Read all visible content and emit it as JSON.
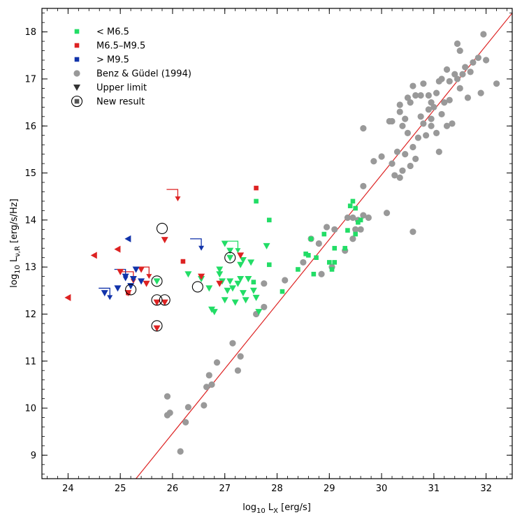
{
  "chart_data": {
    "type": "scatter",
    "xlabel": {
      "main": "log",
      "sub": "10",
      "rest": " L",
      "rest_sub": "X",
      "unit": " [erg/s]"
    },
    "ylabel": {
      "main": "log",
      "sub": "10",
      "rest": " L",
      "rest_sub": "ν,R",
      "unit": " [erg/s/Hz]"
    },
    "xlim": [
      23.5,
      32.5
    ],
    "ylim": [
      8.5,
      18.5
    ],
    "x_ticks": [
      24,
      25,
      26,
      27,
      28,
      29,
      30,
      31,
      32
    ],
    "y_ticks": [
      9,
      10,
      11,
      12,
      13,
      14,
      15,
      16,
      17,
      18
    ],
    "grid": false,
    "legend_placement": "top-left",
    "legend": [
      {
        "label": "< M6.5",
        "marker": "square",
        "color": "#22dd66"
      },
      {
        "label": "M6.5–M9.5",
        "marker": "square",
        "color": "#dd2222"
      },
      {
        "label": "> M9.5",
        "marker": "square",
        "color": "#1133aa"
      },
      {
        "label": "Benz & Güdel (1994)",
        "marker": "circle",
        "color": "#999999"
      },
      {
        "label": "Upper limit",
        "marker": "triangle-down",
        "color": "#333333"
      },
      {
        "label": "New result",
        "marker": "circled-square",
        "color": "#555555"
      }
    ],
    "relation_line": {
      "x": [
        25.3,
        32.5
      ],
      "y": [
        8.5,
        18.4
      ],
      "color": "#dd2222"
    },
    "series": [
      {
        "name": "Benz & Güdel (1994)",
        "marker": "circle",
        "color": "#999999",
        "points": [
          [
            26.15,
            9.08
          ],
          [
            26.25,
            9.7
          ],
          [
            25.9,
            9.85
          ],
          [
            25.95,
            9.9
          ],
          [
            25.9,
            10.25
          ],
          [
            26.3,
            10.02
          ],
          [
            26.6,
            10.06
          ],
          [
            26.65,
            10.45
          ],
          [
            26.75,
            10.5
          ],
          [
            26.7,
            10.7
          ],
          [
            26.85,
            10.97
          ],
          [
            27.25,
            10.8
          ],
          [
            27.15,
            11.38
          ],
          [
            27.3,
            11.1
          ],
          [
            27.6,
            12.0
          ],
          [
            27.75,
            12.15
          ],
          [
            27.75,
            12.65
          ],
          [
            28.15,
            12.72
          ],
          [
            28.5,
            13.1
          ],
          [
            28.65,
            13.6
          ],
          [
            28.8,
            13.5
          ],
          [
            28.85,
            12.85
          ],
          [
            28.95,
            13.85
          ],
          [
            29.05,
            13.0
          ],
          [
            29.1,
            13.8
          ],
          [
            29.3,
            13.35
          ],
          [
            29.45,
            13.6
          ],
          [
            29.5,
            13.8
          ],
          [
            29.45,
            14.05
          ],
          [
            29.55,
            14.0
          ],
          [
            29.6,
            13.8
          ],
          [
            29.65,
            14.1
          ],
          [
            29.65,
            14.72
          ],
          [
            29.75,
            14.05
          ],
          [
            29.65,
            15.95
          ],
          [
            29.85,
            15.25
          ],
          [
            30.0,
            15.35
          ],
          [
            30.1,
            14.15
          ],
          [
            30.2,
            15.2
          ],
          [
            30.25,
            14.95
          ],
          [
            30.3,
            15.45
          ],
          [
            30.35,
            14.9
          ],
          [
            30.4,
            15.05
          ],
          [
            30.45,
            15.4
          ],
          [
            30.5,
            15.85
          ],
          [
            30.55,
            15.15
          ],
          [
            30.6,
            15.55
          ],
          [
            30.65,
            15.3
          ],
          [
            30.2,
            16.1
          ],
          [
            30.35,
            16.3
          ],
          [
            30.4,
            16.0
          ],
          [
            30.45,
            16.15
          ],
          [
            30.5,
            16.6
          ],
          [
            30.55,
            16.5
          ],
          [
            30.6,
            16.85
          ],
          [
            30.65,
            16.65
          ],
          [
            30.7,
            15.75
          ],
          [
            30.75,
            16.2
          ],
          [
            30.75,
            16.65
          ],
          [
            30.8,
            16.05
          ],
          [
            30.8,
            16.9
          ],
          [
            30.85,
            15.8
          ],
          [
            30.9,
            16.35
          ],
          [
            30.9,
            16.65
          ],
          [
            30.95,
            16.0
          ],
          [
            30.95,
            16.5
          ],
          [
            31.0,
            16.4
          ],
          [
            31.05,
            16.7
          ],
          [
            31.05,
            15.85
          ],
          [
            31.1,
            16.95
          ],
          [
            31.1,
            15.45
          ],
          [
            31.15,
            16.25
          ],
          [
            31.15,
            17.0
          ],
          [
            31.2,
            16.5
          ],
          [
            31.25,
            16.0
          ],
          [
            31.25,
            17.2
          ],
          [
            31.3,
            16.55
          ],
          [
            31.3,
            16.95
          ],
          [
            31.35,
            16.05
          ],
          [
            31.4,
            17.1
          ],
          [
            31.45,
            17.0
          ],
          [
            31.5,
            16.8
          ],
          [
            31.55,
            17.1
          ],
          [
            31.6,
            17.25
          ],
          [
            31.65,
            16.6
          ],
          [
            31.7,
            17.15
          ],
          [
            31.75,
            17.35
          ],
          [
            31.85,
            17.45
          ],
          [
            31.9,
            16.7
          ],
          [
            31.95,
            17.95
          ],
          [
            32.0,
            17.4
          ],
          [
            32.2,
            16.9
          ],
          [
            31.5,
            17.6
          ],
          [
            31.45,
            17.75
          ],
          [
            30.95,
            16.15
          ],
          [
            30.6,
            13.75
          ],
          [
            30.35,
            16.45
          ],
          [
            30.15,
            16.1
          ],
          [
            29.35,
            14.05
          ]
        ]
      },
      {
        "name": "< M6.5",
        "marker": "square",
        "color": "#22dd66",
        "points": [
          [
            27.55,
            12.68
          ],
          [
            27.6,
            14.4
          ],
          [
            27.85,
            14.0
          ],
          [
            27.85,
            13.05
          ],
          [
            28.1,
            12.48
          ],
          [
            28.4,
            12.95
          ],
          [
            28.55,
            13.28
          ],
          [
            28.6,
            13.25
          ],
          [
            28.65,
            13.6
          ],
          [
            28.75,
            13.2
          ],
          [
            28.9,
            13.7
          ],
          [
            28.7,
            12.85
          ],
          [
            29.1,
            13.1
          ],
          [
            29.1,
            13.4
          ],
          [
            29.3,
            13.4
          ],
          [
            29.35,
            13.78
          ],
          [
            29.4,
            14.3
          ],
          [
            29.45,
            14.4
          ],
          [
            29.5,
            14.25
          ],
          [
            29.5,
            13.7
          ],
          [
            29.6,
            14.0
          ],
          [
            29.55,
            13.95
          ],
          [
            29.0,
            13.1
          ],
          [
            29.05,
            12.95
          ]
        ]
      },
      {
        "name": "M6.5–M9.5",
        "marker": "square",
        "color": "#dd2222",
        "points": [
          [
            26.2,
            13.12
          ],
          [
            27.6,
            14.68
          ],
          [
            25.15,
            12.45
          ]
        ]
      },
      {
        "name": "< M6.5 upper limit",
        "marker": "triangle-down",
        "color": "#22dd66",
        "points": [
          [
            25.7,
            12.7
          ],
          [
            26.3,
            12.85
          ],
          [
            26.55,
            12.75
          ],
          [
            26.7,
            12.55
          ],
          [
            26.75,
            12.1
          ],
          [
            26.8,
            12.05
          ],
          [
            26.9,
            12.95
          ],
          [
            27.0,
            12.3
          ],
          [
            27.05,
            12.5
          ],
          [
            27.1,
            12.7
          ],
          [
            27.15,
            12.55
          ],
          [
            27.2,
            12.25
          ],
          [
            27.25,
            12.65
          ],
          [
            27.3,
            12.75
          ],
          [
            27.3,
            13.05
          ],
          [
            27.35,
            12.45
          ],
          [
            27.4,
            12.3
          ],
          [
            27.45,
            12.75
          ],
          [
            27.5,
            13.1
          ],
          [
            27.55,
            12.5
          ],
          [
            27.6,
            12.35
          ],
          [
            27.65,
            12.05
          ],
          [
            27.0,
            13.5
          ],
          [
            27.1,
            13.2
          ],
          [
            27.35,
            13.15
          ],
          [
            27.8,
            13.45
          ],
          [
            27.1,
            13.35
          ],
          [
            26.95,
            12.7
          ],
          [
            26.9,
            12.85
          ]
        ]
      },
      {
        "name": "M6.5–M9.5 upper limit",
        "marker": "triangle-down",
        "color": "#dd2222",
        "points": [
          [
            25.85,
            13.58
          ],
          [
            26.55,
            12.8
          ],
          [
            26.9,
            12.65
          ],
          [
            27.3,
            13.25
          ],
          [
            25.15,
            12.45
          ],
          [
            25.0,
            12.9
          ],
          [
            25.7,
            12.25
          ],
          [
            25.85,
            12.25
          ],
          [
            25.7,
            11.7
          ],
          [
            25.4,
            12.95
          ],
          [
            25.5,
            12.65
          ]
        ]
      },
      {
        "name": "> M9.5 upper limit",
        "marker": "triangle-down",
        "color": "#1133aa",
        "points": [
          [
            24.7,
            12.45
          ],
          [
            24.95,
            12.55
          ],
          [
            25.1,
            12.8
          ],
          [
            25.2,
            12.6
          ],
          [
            25.25,
            12.75
          ],
          [
            25.3,
            12.95
          ],
          [
            25.4,
            12.7
          ]
        ]
      },
      {
        "name": "M6.5–M9.5 left limit",
        "marker": "triangle-left",
        "color": "#dd2222",
        "points": [
          [
            24.0,
            12.35
          ],
          [
            24.5,
            13.25
          ],
          [
            24.95,
            13.38
          ]
        ]
      },
      {
        "name": "> M9.5 left limit",
        "marker": "triangle-left",
        "color": "#1133aa",
        "points": [
          [
            25.15,
            13.6
          ]
        ]
      },
      {
        "name": "New result",
        "marker": "circle-ring",
        "color": "#000000",
        "points": [
          [
            25.8,
            13.82
          ],
          [
            25.7,
            12.7
          ],
          [
            25.7,
            12.3
          ],
          [
            25.85,
            12.3
          ],
          [
            25.7,
            11.75
          ],
          [
            25.2,
            12.52
          ],
          [
            26.48,
            12.58
          ],
          [
            27.1,
            13.2
          ]
        ]
      }
    ],
    "limit_brackets": [
      {
        "x": 26.1,
        "y": 14.65,
        "color": "#dd2222"
      },
      {
        "x": 26.55,
        "y": 13.6,
        "color": "#1133aa"
      },
      {
        "x": 24.8,
        "y": 12.55,
        "color": "#1133aa"
      },
      {
        "x": 25.55,
        "y": 13.0,
        "color": "#dd2222"
      },
      {
        "x": 25.25,
        "y": 12.9,
        "color": "#dd2222"
      },
      {
        "x": 27.25,
        "y": 13.55,
        "color": "#22dd66"
      },
      {
        "x": 25.1,
        "y": 12.95,
        "color": "#1133aa"
      }
    ]
  }
}
